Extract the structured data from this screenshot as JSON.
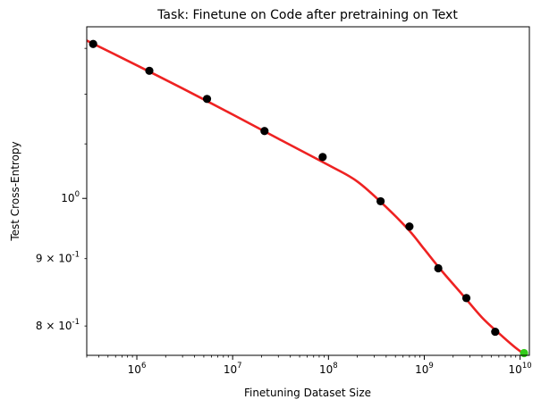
{
  "chart_data": {
    "type": "scatter",
    "title": "Task: Finetune on Code after pretraining on Text",
    "xlabel": "Finetuning Dataset Size",
    "ylabel": "Test Cross-Entropy",
    "x_scale": "log",
    "y_scale": "log",
    "xlim": [
      300000,
      12500000000
    ],
    "ylim": [
      0.76,
      1.35
    ],
    "x_ticks": [
      {
        "value": 1000000,
        "base": "10",
        "exp": "6"
      },
      {
        "value": 10000000,
        "base": "10",
        "exp": "7"
      },
      {
        "value": 100000000,
        "base": "10",
        "exp": "8"
      },
      {
        "value": 1000000000,
        "base": "10",
        "exp": "9"
      },
      {
        "value": 10000000000,
        "base": "10",
        "exp": "10"
      }
    ],
    "y_ticks": [
      {
        "value": 1.0,
        "base": "10",
        "exp": "0",
        "mantissa": ""
      },
      {
        "value": 0.9,
        "base": "10",
        "exp": "-1",
        "mantissa": "9 × "
      },
      {
        "value": 0.8,
        "base": "10",
        "exp": "-1",
        "mantissa": "8 × "
      }
    ],
    "series": [
      {
        "marker": "dot",
        "color": "#000000",
        "x": [
          350000,
          1350000,
          5400000,
          21500000,
          87000000,
          350000000,
          700000000,
          1400000000,
          2750000000,
          5500000000
        ],
        "y": [
          1.31,
          1.25,
          1.19,
          1.125,
          1.075,
          0.995,
          0.952,
          0.885,
          0.84,
          0.792
        ]
      },
      {
        "marker": "dot",
        "color": "#33cc1a",
        "x": [
          11000000000
        ],
        "y": [
          0.763
        ]
      },
      {
        "marker": "line",
        "color": "#ee2222",
        "x": [
          300000,
          1000000,
          3000000,
          10000000,
          30000000,
          100000000,
          200000000,
          400000000,
          700000000,
          1000000000,
          1500000000,
          2500000000,
          4000000000,
          6000000000,
          9000000000,
          12500000000
        ],
        "y": [
          1.318,
          1.262,
          1.212,
          1.158,
          1.11,
          1.06,
          1.03,
          0.985,
          0.945,
          0.915,
          0.882,
          0.845,
          0.812,
          0.79,
          0.77,
          0.757
        ]
      }
    ]
  }
}
